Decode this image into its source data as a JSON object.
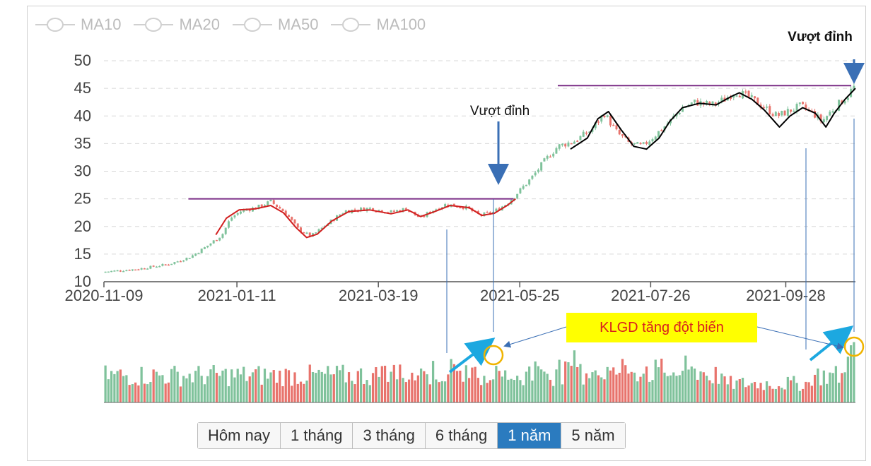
{
  "legend": [
    {
      "label": "MA10"
    },
    {
      "label": "MA20"
    },
    {
      "label": "MA50"
    },
    {
      "label": "MA100"
    }
  ],
  "range_buttons": [
    {
      "label": "Hôm nay",
      "active": false
    },
    {
      "label": "1 tháng",
      "active": false
    },
    {
      "label": "3 tháng",
      "active": false
    },
    {
      "label": "6 tháng",
      "active": false
    },
    {
      "label": "1 năm",
      "active": true
    },
    {
      "label": "5 năm",
      "active": false
    }
  ],
  "annotations": {
    "peak_label_1": "Vượt đỉnh",
    "peak_label_2": "Vượt đỉnh",
    "volume_callout": "KLGD tăng đột biến"
  },
  "colors": {
    "up": "#7fc29b",
    "down": "#e8736c",
    "resistance": "#7b2d86",
    "trend_red": "#d11f1f",
    "trend_black": "#000000",
    "arrow_blue": "#3a6fb5",
    "arrow_cyan": "#1ca8e0",
    "circle": "#f0b400",
    "active_button": "#2b7bbf",
    "callout_bg": "#ffff00",
    "callout_text": "#d81f1f"
  },
  "chart_data": {
    "type": "candlestick",
    "y_ticks": [
      10,
      15,
      20,
      25,
      30,
      35,
      40,
      45,
      50
    ],
    "ylim": [
      10,
      50
    ],
    "x_ticks": [
      "2020-11-09",
      "2021-01-11",
      "2021-03-19",
      "2021-05-25",
      "2021-07-26",
      "2021-09-28"
    ],
    "resistance_levels": [
      {
        "value": 25,
        "from_date": "2020-12-19",
        "to_date": "2021-05-22"
      },
      {
        "value": 45.5,
        "from_date": "2021-06-12",
        "to_date": "2021-10-29"
      }
    ],
    "price_path": [
      [
        "2020-11-09",
        11.8
      ],
      [
        "2020-11-25",
        12.3
      ],
      [
        "2020-12-10",
        13.2
      ],
      [
        "2020-12-20",
        14.5
      ],
      [
        "2020-12-28",
        16.5
      ],
      [
        "2021-01-04",
        18.5
      ],
      [
        "2021-01-08",
        21.5
      ],
      [
        "2021-01-13",
        22.8
      ],
      [
        "2021-01-21",
        23.5
      ],
      [
        "2021-01-27",
        24.5
      ],
      [
        "2021-02-03",
        22.5
      ],
      [
        "2021-02-09",
        19.5
      ],
      [
        "2021-02-15",
        18.2
      ],
      [
        "2021-02-23",
        20.5
      ],
      [
        "2021-03-03",
        22.8
      ],
      [
        "2021-03-15",
        23.3
      ],
      [
        "2021-03-25",
        22.6
      ],
      [
        "2021-04-01",
        23.2
      ],
      [
        "2021-04-08",
        21.5
      ],
      [
        "2021-04-13",
        22.8
      ],
      [
        "2021-04-20",
        24.0
      ],
      [
        "2021-04-29",
        23.5
      ],
      [
        "2021-05-06",
        22.0
      ],
      [
        "2021-05-12",
        22.5
      ],
      [
        "2021-05-19",
        24.2
      ],
      [
        "2021-05-25",
        26.5
      ],
      [
        "2021-05-31",
        29.0
      ],
      [
        "2021-06-06",
        32.0
      ],
      [
        "2021-06-12",
        34.5
      ],
      [
        "2021-06-20",
        35.5
      ],
      [
        "2021-06-28",
        37.5
      ],
      [
        "2021-07-04",
        40.5
      ],
      [
        "2021-07-10",
        37.0
      ],
      [
        "2021-07-16",
        35.0
      ],
      [
        "2021-07-22",
        34.5
      ],
      [
        "2021-07-28",
        36.5
      ],
      [
        "2021-08-04",
        39.0
      ],
      [
        "2021-08-10",
        41.5
      ],
      [
        "2021-08-16",
        42.5
      ],
      [
        "2021-08-24",
        42.0
      ],
      [
        "2021-08-30",
        43.0
      ],
      [
        "2021-09-04",
        44.5
      ],
      [
        "2021-09-10",
        43.5
      ],
      [
        "2021-09-18",
        41.5
      ],
      [
        "2021-09-24",
        40.0
      ],
      [
        "2021-09-30",
        41.0
      ],
      [
        "2021-10-05",
        41.8
      ],
      [
        "2021-10-11",
        40.5
      ],
      [
        "2021-10-15",
        39.0
      ],
      [
        "2021-10-21",
        41.5
      ],
      [
        "2021-10-27",
        43.5
      ],
      [
        "2021-10-30",
        45.2
      ]
    ],
    "volume_note": "volume bars in relative units (0-1)"
  }
}
